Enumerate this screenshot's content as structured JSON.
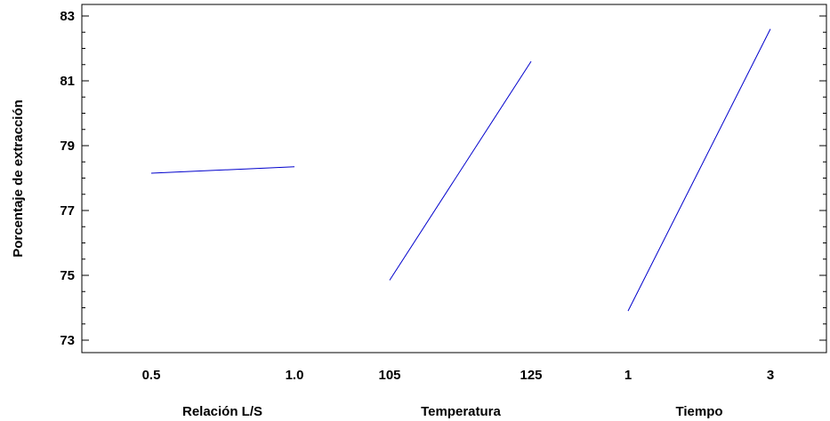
{
  "chart_data": {
    "type": "line",
    "title": "",
    "ylabel": "Porcentaje de extracción",
    "ylim": [
      72.7,
      83.2
    ],
    "y_ticks": [
      "73",
      "75",
      "77",
      "79",
      "81",
      "83"
    ],
    "y_tick_values": [
      73,
      75,
      77,
      79,
      81,
      83
    ],
    "grid": false,
    "line_color": "#0000cc",
    "panels": [
      {
        "factor": "Relación L/S",
        "tick_labels": [
          "0.5",
          "1.0"
        ],
        "x": [
          0.5,
          1.0
        ],
        "y": [
          78.15,
          78.35
        ]
      },
      {
        "factor": "Temperatura",
        "tick_labels": [
          "105",
          "125"
        ],
        "x": [
          105,
          125
        ],
        "y": [
          74.85,
          81.6
        ]
      },
      {
        "factor": "Tiempo",
        "tick_labels": [
          "1",
          "3"
        ],
        "x": [
          1,
          3
        ],
        "y": [
          73.9,
          82.6
        ]
      }
    ]
  }
}
